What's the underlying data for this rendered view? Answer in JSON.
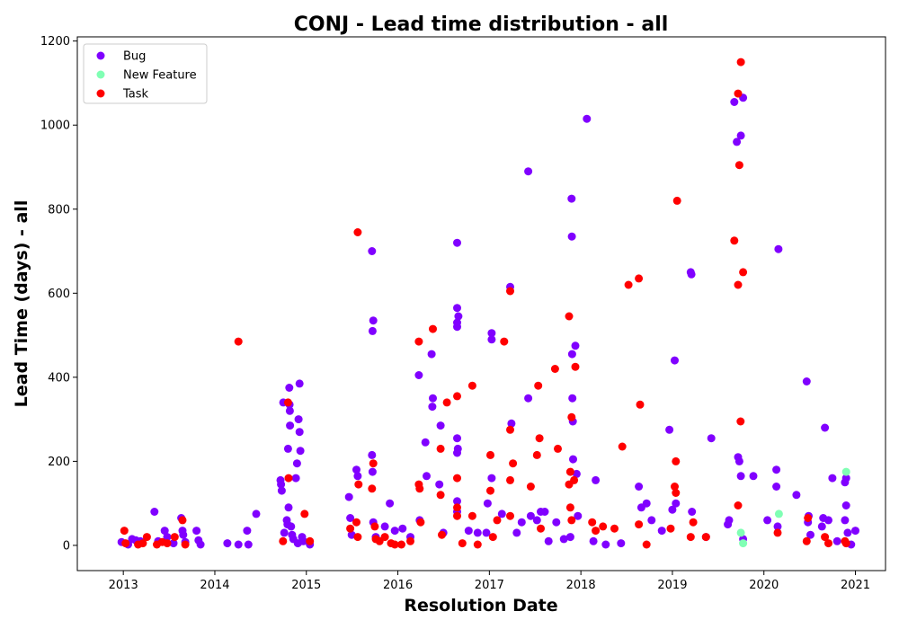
{
  "chart_data": {
    "type": "scatter",
    "title": "CONJ - Lead time distribution - all",
    "xlabel": "Resolution Date",
    "ylabel": "Lead Time (days) - all",
    "xlim": [
      "2012-07-01",
      "2021-05-01"
    ],
    "ylim": [
      -60,
      1210
    ],
    "x_ticks": [
      "2013",
      "2014",
      "2015",
      "2016",
      "2017",
      "2018",
      "2019",
      "2020",
      "2021"
    ],
    "y_ticks": [
      "0",
      "200",
      "400",
      "600",
      "800",
      "1000",
      "1200"
    ],
    "grid": false,
    "legend_position": "top-left",
    "series": [
      {
        "name": "Bug",
        "color": "#8000ff",
        "points": [
          [
            "2012-12-25",
            8
          ],
          [
            "2013-01-20",
            2
          ],
          [
            "2013-02-05",
            15
          ],
          [
            "2013-02-20",
            12
          ],
          [
            "2013-03-10",
            10
          ],
          [
            "2013-05-05",
            80
          ],
          [
            "2013-05-20",
            10
          ],
          [
            "2013-06-15",
            35
          ],
          [
            "2013-06-25",
            20
          ],
          [
            "2013-07-20",
            5
          ],
          [
            "2013-08-20",
            65
          ],
          [
            "2013-08-25",
            35
          ],
          [
            "2013-08-28",
            25
          ],
          [
            "2013-09-05",
            8
          ],
          [
            "2013-10-20",
            35
          ],
          [
            "2013-10-28",
            12
          ],
          [
            "2013-11-05",
            2
          ],
          [
            "2014-02-20",
            5
          ],
          [
            "2014-04-05",
            2
          ],
          [
            "2014-05-10",
            35
          ],
          [
            "2014-05-15",
            2
          ],
          [
            "2014-06-15",
            75
          ],
          [
            "2014-09-20",
            155
          ],
          [
            "2014-09-22",
            145
          ],
          [
            "2014-09-25",
            130
          ],
          [
            "2014-10-01",
            340
          ],
          [
            "2014-10-05",
            30
          ],
          [
            "2014-10-15",
            60
          ],
          [
            "2014-10-18",
            50
          ],
          [
            "2014-10-20",
            230
          ],
          [
            "2014-10-22",
            90
          ],
          [
            "2014-10-25",
            375
          ],
          [
            "2014-10-26",
            335
          ],
          [
            "2014-10-27",
            320
          ],
          [
            "2014-10-28",
            285
          ],
          [
            "2014-11-01",
            45
          ],
          [
            "2014-11-05",
            25
          ],
          [
            "2014-11-10",
            15
          ],
          [
            "2014-11-20",
            160
          ],
          [
            "2014-11-25",
            195
          ],
          [
            "2014-12-01",
            300
          ],
          [
            "2014-12-05",
            270
          ],
          [
            "2014-12-08",
            225
          ],
          [
            "2014-12-05",
            385
          ],
          [
            "2014-12-15",
            20
          ],
          [
            "2014-11-28",
            5
          ],
          [
            "2014-12-20",
            10
          ],
          [
            "2015-01-15",
            2
          ],
          [
            "2015-06-20",
            115
          ],
          [
            "2015-06-25",
            65
          ],
          [
            "2015-07-01",
            25
          ],
          [
            "2015-07-20",
            180
          ],
          [
            "2015-07-25",
            165
          ],
          [
            "2015-09-20",
            700
          ],
          [
            "2015-09-25",
            535
          ],
          [
            "2015-09-22",
            510
          ],
          [
            "2015-09-20",
            215
          ],
          [
            "2015-09-22",
            175
          ],
          [
            "2015-09-25",
            55
          ],
          [
            "2015-11-10",
            45
          ],
          [
            "2015-11-30",
            100
          ],
          [
            "2015-10-05",
            20
          ],
          [
            "2015-12-20",
            35
          ],
          [
            "2016-01-20",
            40
          ],
          [
            "2016-02-20",
            20
          ],
          [
            "2016-03-25",
            405
          ],
          [
            "2016-03-28",
            60
          ],
          [
            "2016-04-20",
            245
          ],
          [
            "2016-04-25",
            165
          ],
          [
            "2016-05-15",
            455
          ],
          [
            "2016-05-20",
            350
          ],
          [
            "2016-05-18",
            330
          ],
          [
            "2016-06-20",
            285
          ],
          [
            "2016-06-15",
            145
          ],
          [
            "2016-07-01",
            30
          ],
          [
            "2016-08-25",
            720
          ],
          [
            "2016-08-25",
            565
          ],
          [
            "2016-08-30",
            545
          ],
          [
            "2016-08-25",
            530
          ],
          [
            "2016-08-25",
            520
          ],
          [
            "2016-08-25",
            255
          ],
          [
            "2016-08-28",
            230
          ],
          [
            "2016-08-25",
            220
          ],
          [
            "2016-08-25",
            105
          ],
          [
            "2016-08-25",
            80
          ],
          [
            "2016-10-10",
            35
          ],
          [
            "2016-11-15",
            30
          ],
          [
            "2016-12-20",
            30
          ],
          [
            "2016-12-25",
            100
          ],
          [
            "2017-01-10",
            505
          ],
          [
            "2017-01-10",
            490
          ],
          [
            "2017-01-10",
            160
          ],
          [
            "2017-02-20",
            75
          ],
          [
            "2017-03-25",
            615
          ],
          [
            "2017-03-30",
            290
          ],
          [
            "2017-04-20",
            30
          ],
          [
            "2017-05-10",
            55
          ],
          [
            "2017-06-05",
            890
          ],
          [
            "2017-06-05",
            350
          ],
          [
            "2017-06-15",
            70
          ],
          [
            "2017-07-10",
            60
          ],
          [
            "2017-07-25",
            80
          ],
          [
            "2017-08-10",
            80
          ],
          [
            "2017-08-25",
            10
          ],
          [
            "2017-09-25",
            55
          ],
          [
            "2017-10-25",
            15
          ],
          [
            "2017-11-20",
            20
          ],
          [
            "2017-11-25",
            825
          ],
          [
            "2017-11-26",
            735
          ],
          [
            "2017-11-27",
            455
          ],
          [
            "2017-11-28",
            350
          ],
          [
            "2017-11-30",
            295
          ],
          [
            "2017-12-01",
            205
          ],
          [
            "2017-12-10",
            475
          ],
          [
            "2017-12-15",
            170
          ],
          [
            "2017-12-20",
            70
          ],
          [
            "2018-01-25",
            1015
          ],
          [
            "2018-02-20",
            10
          ],
          [
            "2018-03-01",
            155
          ],
          [
            "2018-04-10",
            2
          ],
          [
            "2018-06-10",
            5
          ],
          [
            "2018-08-20",
            140
          ],
          [
            "2018-08-30",
            90
          ],
          [
            "2018-09-20",
            100
          ],
          [
            "2018-10-10",
            60
          ],
          [
            "2018-11-20",
            35
          ],
          [
            "2018-12-20",
            275
          ],
          [
            "2019-01-01",
            85
          ],
          [
            "2019-01-10",
            440
          ],
          [
            "2019-01-15",
            100
          ],
          [
            "2019-03-15",
            650
          ],
          [
            "2019-03-18",
            645
          ],
          [
            "2019-03-20",
            80
          ],
          [
            "2019-05-15",
            20
          ],
          [
            "2019-06-05",
            255
          ],
          [
            "2019-08-10",
            50
          ],
          [
            "2019-08-15",
            60
          ],
          [
            "2019-09-05",
            1055
          ],
          [
            "2019-09-15",
            960
          ],
          [
            "2019-09-20",
            210
          ],
          [
            "2019-10-01",
            975
          ],
          [
            "2019-10-10",
            1065
          ],
          [
            "2019-09-25",
            200
          ],
          [
            "2019-10-01",
            165
          ],
          [
            "2019-10-10",
            15
          ],
          [
            "2019-11-20",
            165
          ],
          [
            "2020-01-15",
            60
          ],
          [
            "2020-02-20",
            140
          ],
          [
            "2020-02-20",
            180
          ],
          [
            "2020-02-28",
            705
          ],
          [
            "2020-02-25",
            45
          ],
          [
            "2020-05-10",
            120
          ],
          [
            "2020-06-20",
            390
          ],
          [
            "2020-06-25",
            55
          ],
          [
            "2020-06-28",
            70
          ],
          [
            "2020-07-05",
            25
          ],
          [
            "2020-08-20",
            45
          ],
          [
            "2020-08-25",
            65
          ],
          [
            "2020-09-01",
            280
          ],
          [
            "2020-09-15",
            60
          ],
          [
            "2020-10-01",
            160
          ],
          [
            "2020-11-20",
            60
          ],
          [
            "2020-11-25",
            95
          ],
          [
            "2020-11-20",
            150
          ],
          [
            "2020-11-25",
            160
          ],
          [
            "2020-12-01",
            30
          ],
          [
            "2021-01-01",
            35
          ],
          [
            "2020-10-20",
            10
          ],
          [
            "2020-12-15",
            2
          ]
        ]
      },
      {
        "name": "New Feature",
        "color": "#80ffb4",
        "points": [
          [
            "2019-10-01",
            30
          ],
          [
            "2019-10-10",
            5
          ],
          [
            "2020-03-01",
            75
          ],
          [
            "2020-11-25",
            175
          ]
        ]
      },
      {
        "name": "Task",
        "color": "#ff0000",
        "points": [
          [
            "2013-01-05",
            35
          ],
          [
            "2013-01-10",
            5
          ],
          [
            "2013-03-01",
            2
          ],
          [
            "2013-03-20",
            5
          ],
          [
            "2013-04-05",
            20
          ],
          [
            "2013-05-15",
            2
          ],
          [
            "2013-06-05",
            8
          ],
          [
            "2013-06-25",
            5
          ],
          [
            "2013-07-25",
            20
          ],
          [
            "2013-08-25",
            60
          ],
          [
            "2013-09-05",
            2
          ],
          [
            "2014-04-05",
            485
          ],
          [
            "2014-09-30",
            10
          ],
          [
            "2014-10-20",
            340
          ],
          [
            "2014-10-22",
            160
          ],
          [
            "2014-12-25",
            75
          ],
          [
            "2015-01-15",
            10
          ],
          [
            "2015-06-25",
            40
          ],
          [
            "2015-07-25",
            745
          ],
          [
            "2015-07-28",
            145
          ],
          [
            "2015-07-20",
            55
          ],
          [
            "2015-07-25",
            20
          ],
          [
            "2015-09-20",
            135
          ],
          [
            "2015-09-25",
            195
          ],
          [
            "2015-10-01",
            45
          ],
          [
            "2015-10-05",
            15
          ],
          [
            "2015-10-20",
            10
          ],
          [
            "2015-11-10",
            20
          ],
          [
            "2015-12-05",
            5
          ],
          [
            "2015-12-20",
            2
          ],
          [
            "2016-01-15",
            2
          ],
          [
            "2016-02-20",
            10
          ],
          [
            "2016-03-25",
            485
          ],
          [
            "2016-03-25",
            145
          ],
          [
            "2016-03-28",
            135
          ],
          [
            "2016-04-01",
            55
          ],
          [
            "2016-05-20",
            515
          ],
          [
            "2016-06-20",
            230
          ],
          [
            "2016-06-20",
            120
          ],
          [
            "2016-06-25",
            25
          ],
          [
            "2016-07-15",
            340
          ],
          [
            "2016-08-25",
            355
          ],
          [
            "2016-08-25",
            160
          ],
          [
            "2016-08-25",
            90
          ],
          [
            "2016-08-25",
            70
          ],
          [
            "2016-09-15",
            5
          ],
          [
            "2016-10-25",
            380
          ],
          [
            "2016-10-25",
            70
          ],
          [
            "2016-11-15",
            2
          ],
          [
            "2017-01-05",
            215
          ],
          [
            "2017-01-05",
            130
          ],
          [
            "2017-01-15",
            20
          ],
          [
            "2017-02-01",
            60
          ],
          [
            "2017-03-01",
            485
          ],
          [
            "2017-03-25",
            605
          ],
          [
            "2017-03-25",
            275
          ],
          [
            "2017-03-25",
            155
          ],
          [
            "2017-04-05",
            195
          ],
          [
            "2017-03-25",
            70
          ],
          [
            "2017-06-15",
            140
          ],
          [
            "2017-07-15",
            380
          ],
          [
            "2017-07-20",
            255
          ],
          [
            "2017-07-10",
            215
          ],
          [
            "2017-07-25",
            40
          ],
          [
            "2017-09-20",
            420
          ],
          [
            "2017-10-01",
            230
          ],
          [
            "2017-11-15",
            545
          ],
          [
            "2017-11-25",
            305
          ],
          [
            "2017-11-20",
            175
          ],
          [
            "2017-11-15",
            145
          ],
          [
            "2017-11-20",
            90
          ],
          [
            "2017-12-05",
            155
          ],
          [
            "2017-12-10",
            425
          ],
          [
            "2017-11-25",
            60
          ],
          [
            "2018-02-15",
            55
          ],
          [
            "2018-03-01",
            35
          ],
          [
            "2018-03-30",
            45
          ],
          [
            "2018-05-15",
            40
          ],
          [
            "2018-06-15",
            235
          ],
          [
            "2018-07-10",
            620
          ],
          [
            "2018-08-20",
            635
          ],
          [
            "2018-08-25",
            335
          ],
          [
            "2018-08-20",
            50
          ],
          [
            "2018-09-20",
            2
          ],
          [
            "2018-12-25",
            40
          ],
          [
            "2019-01-20",
            820
          ],
          [
            "2019-01-15",
            200
          ],
          [
            "2019-01-10",
            140
          ],
          [
            "2019-01-15",
            125
          ],
          [
            "2019-03-25",
            55
          ],
          [
            "2019-03-15",
            20
          ],
          [
            "2019-05-15",
            20
          ],
          [
            "2019-09-05",
            725
          ],
          [
            "2019-09-20",
            1075
          ],
          [
            "2019-09-25",
            905
          ],
          [
            "2019-10-01",
            1150
          ],
          [
            "2019-10-10",
            650
          ],
          [
            "2019-09-20",
            620
          ],
          [
            "2019-09-30",
            295
          ],
          [
            "2019-09-20",
            95
          ],
          [
            "2020-02-25",
            30
          ],
          [
            "2020-06-25",
            65
          ],
          [
            "2020-06-20",
            10
          ],
          [
            "2020-09-01",
            20
          ],
          [
            "2020-09-15",
            5
          ],
          [
            "2020-11-20",
            10
          ],
          [
            "2020-11-25",
            5
          ]
        ]
      }
    ],
    "bottom_cluster_series_note_removed": null
  }
}
